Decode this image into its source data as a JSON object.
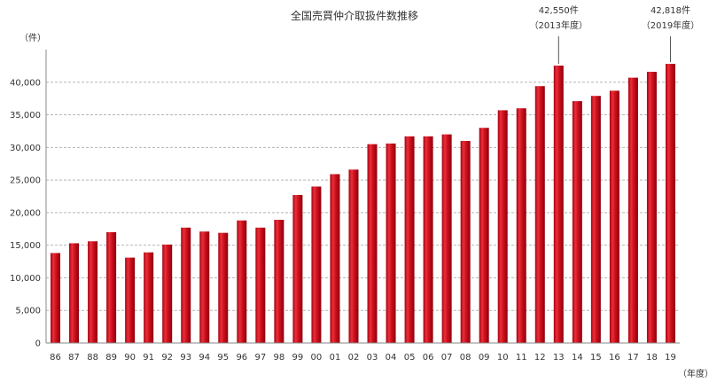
{
  "chart_data": {
    "type": "bar",
    "title": "全国売買仲介取扱件数推移",
    "ylabel": "（件）",
    "xlabel": "（年度）",
    "ylim": [
      0,
      45000
    ],
    "yticks": [
      0,
      5000,
      10000,
      15000,
      20000,
      25000,
      30000,
      35000,
      40000
    ],
    "ytick_labels": [
      "0",
      "5,000",
      "10,000",
      "15,000",
      "20,000",
      "25,000",
      "30,000",
      "35,000",
      "40,000"
    ],
    "grid": true,
    "bar_color": "#d0101e",
    "categories": [
      "86",
      "87",
      "88",
      "89",
      "90",
      "91",
      "92",
      "93",
      "94",
      "95",
      "96",
      "97",
      "98",
      "99",
      "00",
      "01",
      "02",
      "03",
      "04",
      "05",
      "06",
      "07",
      "08",
      "09",
      "10",
      "11",
      "12",
      "13",
      "14",
      "15",
      "16",
      "17",
      "18",
      "19"
    ],
    "values": [
      13800,
      15300,
      15600,
      17000,
      13100,
      13900,
      15100,
      17700,
      17100,
      16900,
      18800,
      17700,
      18900,
      22700,
      24000,
      25900,
      26600,
      30500,
      30600,
      31700,
      31700,
      32000,
      31000,
      33000,
      35700,
      36000,
      39400,
      42550,
      37100,
      37900,
      38700,
      40700,
      41600,
      42818
    ],
    "annotations": [
      {
        "category": "13",
        "value_text": "42,550件",
        "year_text": "（2013年度）"
      },
      {
        "category": "19",
        "value_text": "42,818件",
        "year_text": "（2019年度）"
      }
    ]
  }
}
